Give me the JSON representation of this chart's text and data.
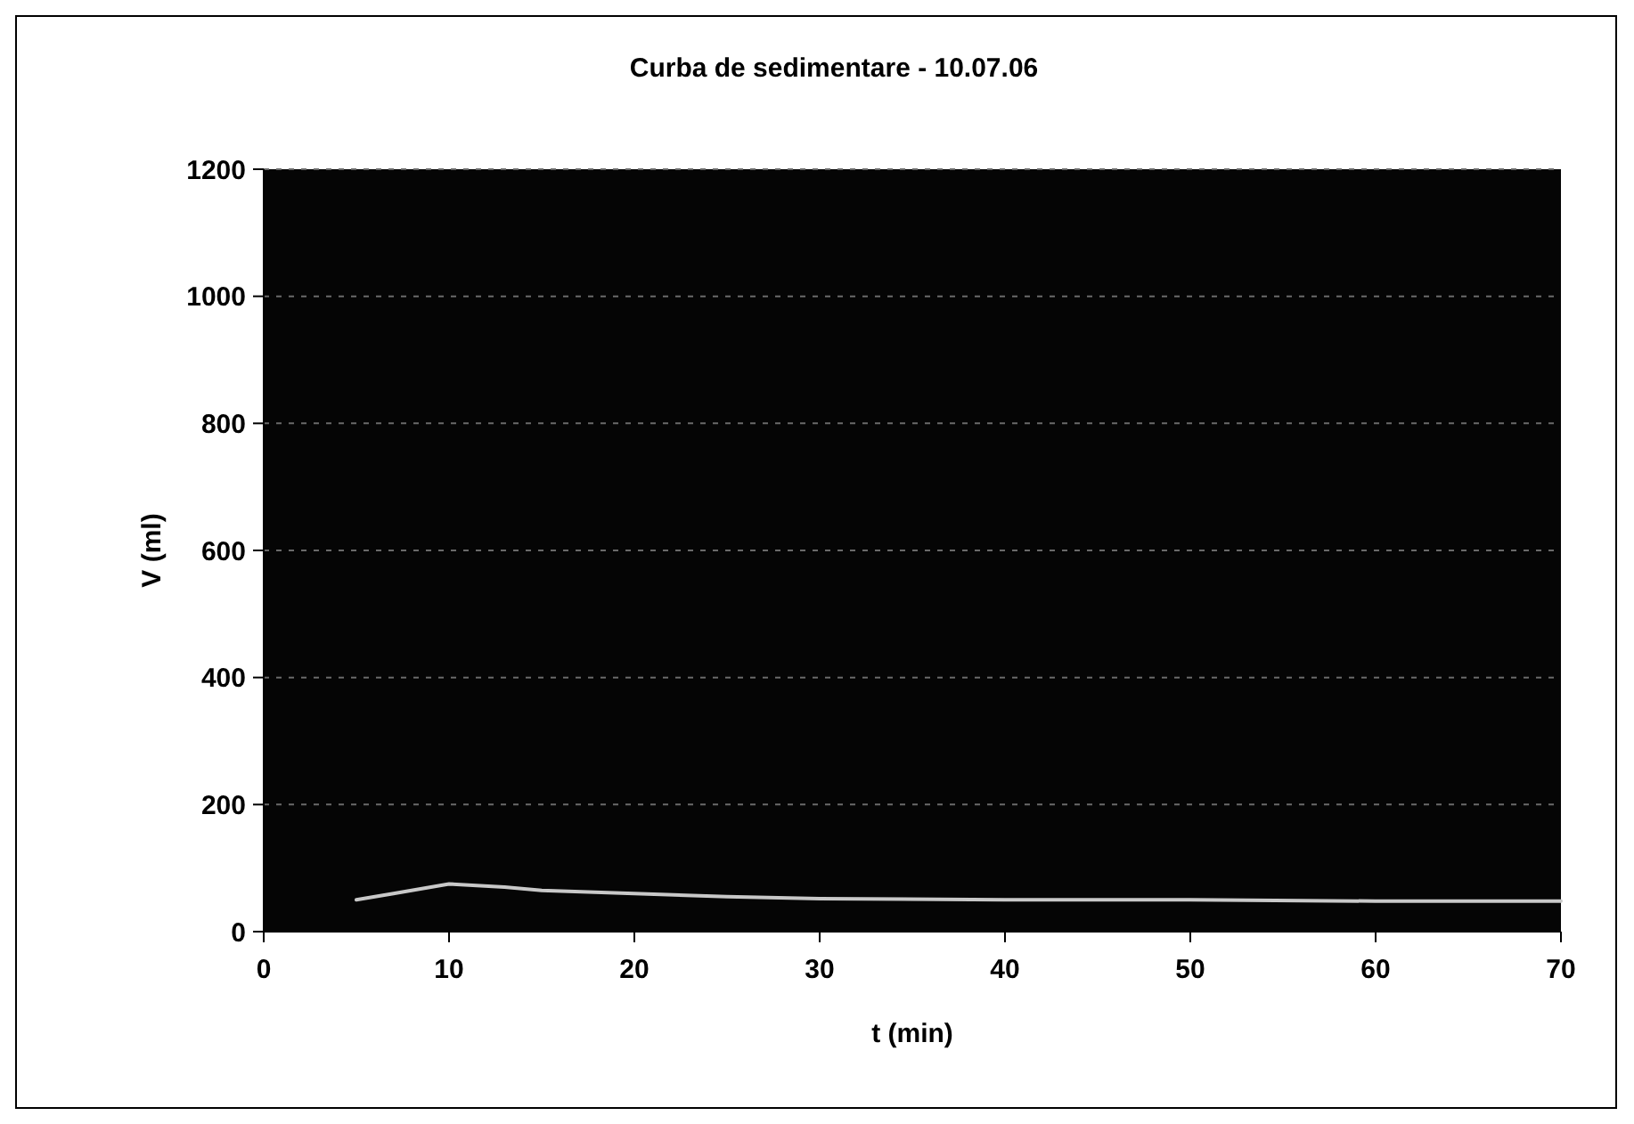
{
  "chart_data": {
    "type": "line",
    "title": "Curba de sedimentare - 10.07.06",
    "xlabel": "t (min)",
    "ylabel": "V (ml)",
    "x": [
      5,
      7,
      10,
      13,
      15,
      20,
      25,
      30,
      40,
      50,
      60,
      70
    ],
    "series": [
      {
        "color": "#c8c8c8",
        "values": [
          50,
          60,
          75,
          70,
          65,
          60,
          55,
          52,
          50,
          50,
          48,
          48
        ]
      }
    ],
    "xlim": [
      0,
      70
    ],
    "xticks": [
      0,
      10,
      20,
      30,
      40,
      50,
      60,
      70
    ],
    "ylim": [
      0,
      1200
    ],
    "yticks": [
      0,
      200,
      400,
      600,
      800,
      1000,
      1200
    ],
    "grid": "y",
    "marker": "none",
    "line_style": "solid"
  }
}
